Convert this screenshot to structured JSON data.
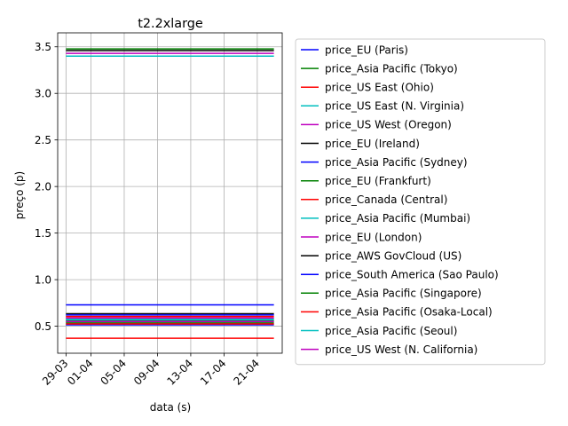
{
  "chart_data": {
    "type": "line",
    "title": "t2.2xlarge",
    "xlabel": "data (s)",
    "ylabel": "preço (p)",
    "x_tick_labels": [
      "29-03",
      "01-04",
      "05-04",
      "09-04",
      "13-04",
      "17-04",
      "21-04"
    ],
    "x_tick_dates": [
      "2018-03-29",
      "2018-04-01",
      "2018-04-05",
      "2018-04-09",
      "2018-04-13",
      "2018-04-17",
      "2018-04-21"
    ],
    "x_range": [
      "2018-03-28",
      "2018-04-24"
    ],
    "y_ticks": [
      0.5,
      1.0,
      1.5,
      2.0,
      2.5,
      3.0,
      3.5
    ],
    "ylim": [
      0.21,
      3.65
    ],
    "grid": true,
    "legend_position": "outside-right",
    "series": [
      {
        "name": "price_EU (Paris)",
        "color": "#0000ff",
        "x": [
          "2018-03-29",
          "2018-04-23"
        ],
        "values": [
          0.5152,
          0.5152
        ]
      },
      {
        "name": "price_Asia Pacific (Tokyo)",
        "color": "#008000",
        "x": [
          "2018-03-29",
          "2018-04-23"
        ],
        "values": [
          3.477,
          3.477
        ]
      },
      {
        "name": "price_US East (Ohio)",
        "color": "#ff0000",
        "x": [
          "2018-03-29",
          "2018-04-23"
        ],
        "values": [
          0.3712,
          0.3712
        ]
      },
      {
        "name": "price_US East (N. Virginia)",
        "color": "#00bfbf",
        "x": [
          "2018-03-29",
          "2018-04-23"
        ],
        "values": [
          3.4,
          3.4
        ]
      },
      {
        "name": "price_US West (Oregon)",
        "color": "#bf00bf",
        "x": [
          "2018-03-29",
          "2018-04-23"
        ],
        "values": [
          3.43,
          3.43
        ]
      },
      {
        "name": "price_EU (Ireland)",
        "color": "#000000",
        "x": [
          "2018-03-29",
          "2018-04-23"
        ],
        "values": [
          3.46,
          3.46
        ]
      },
      {
        "name": "price_Asia Pacific (Sydney)",
        "color": "#0000ff",
        "x": [
          "2018-03-29",
          "2018-04-23"
        ],
        "values": [
          0.7296,
          0.7296
        ]
      },
      {
        "name": "price_EU (Frankfurt)",
        "color": "#008000",
        "x": [
          "2018-03-29",
          "2018-04-23"
        ],
        "values": [
          0.5356,
          0.5356
        ]
      },
      {
        "name": "price_Canada (Central)",
        "color": "#ff0000",
        "x": [
          "2018-03-29",
          "2018-04-23"
        ],
        "values": [
          0.5248,
          0.5248
        ]
      },
      {
        "name": "price_Asia Pacific (Mumbai)",
        "color": "#00bfbf",
        "x": [
          "2018-03-29",
          "2018-04-23"
        ],
        "values": [
          0.5792,
          0.5792
        ]
      },
      {
        "name": "price_EU (London)",
        "color": "#bf00bf",
        "x": [
          "2018-03-29",
          "2018-04-23"
        ],
        "values": [
          0.5888,
          0.5888
        ]
      },
      {
        "name": "price_AWS GovCloud (US)",
        "color": "#000000",
        "x": [
          "2018-03-29",
          "2018-04-23"
        ],
        "values": [
          0.6336,
          0.6336
        ]
      },
      {
        "name": "price_South America (Sao Paulo)",
        "color": "#0000ff",
        "x": [
          "2018-03-29",
          "2018-04-23"
        ],
        "values": [
          0.6208,
          0.6208
        ]
      },
      {
        "name": "price_Asia Pacific (Singapore)",
        "color": "#008000",
        "x": [
          "2018-03-29",
          "2018-04-23"
        ],
        "values": [
          0.5568,
          0.5568
        ]
      },
      {
        "name": "price_Asia Pacific (Osaka-Local)",
        "color": "#ff0000",
        "x": [
          "2018-03-29",
          "2018-04-23"
        ],
        "values": [
          0.6048,
          0.6048
        ]
      },
      {
        "name": "price_Asia Pacific (Seoul)",
        "color": "#00bfbf",
        "x": [
          "2018-03-29",
          "2018-04-23"
        ],
        "values": [
          0.5696,
          0.5696
        ]
      },
      {
        "name": "price_US West (N. California)",
        "color": "#bf00bf",
        "x": [
          "2018-03-29",
          "2018-04-23"
        ],
        "values": [
          0.5504,
          0.5504
        ]
      }
    ]
  }
}
